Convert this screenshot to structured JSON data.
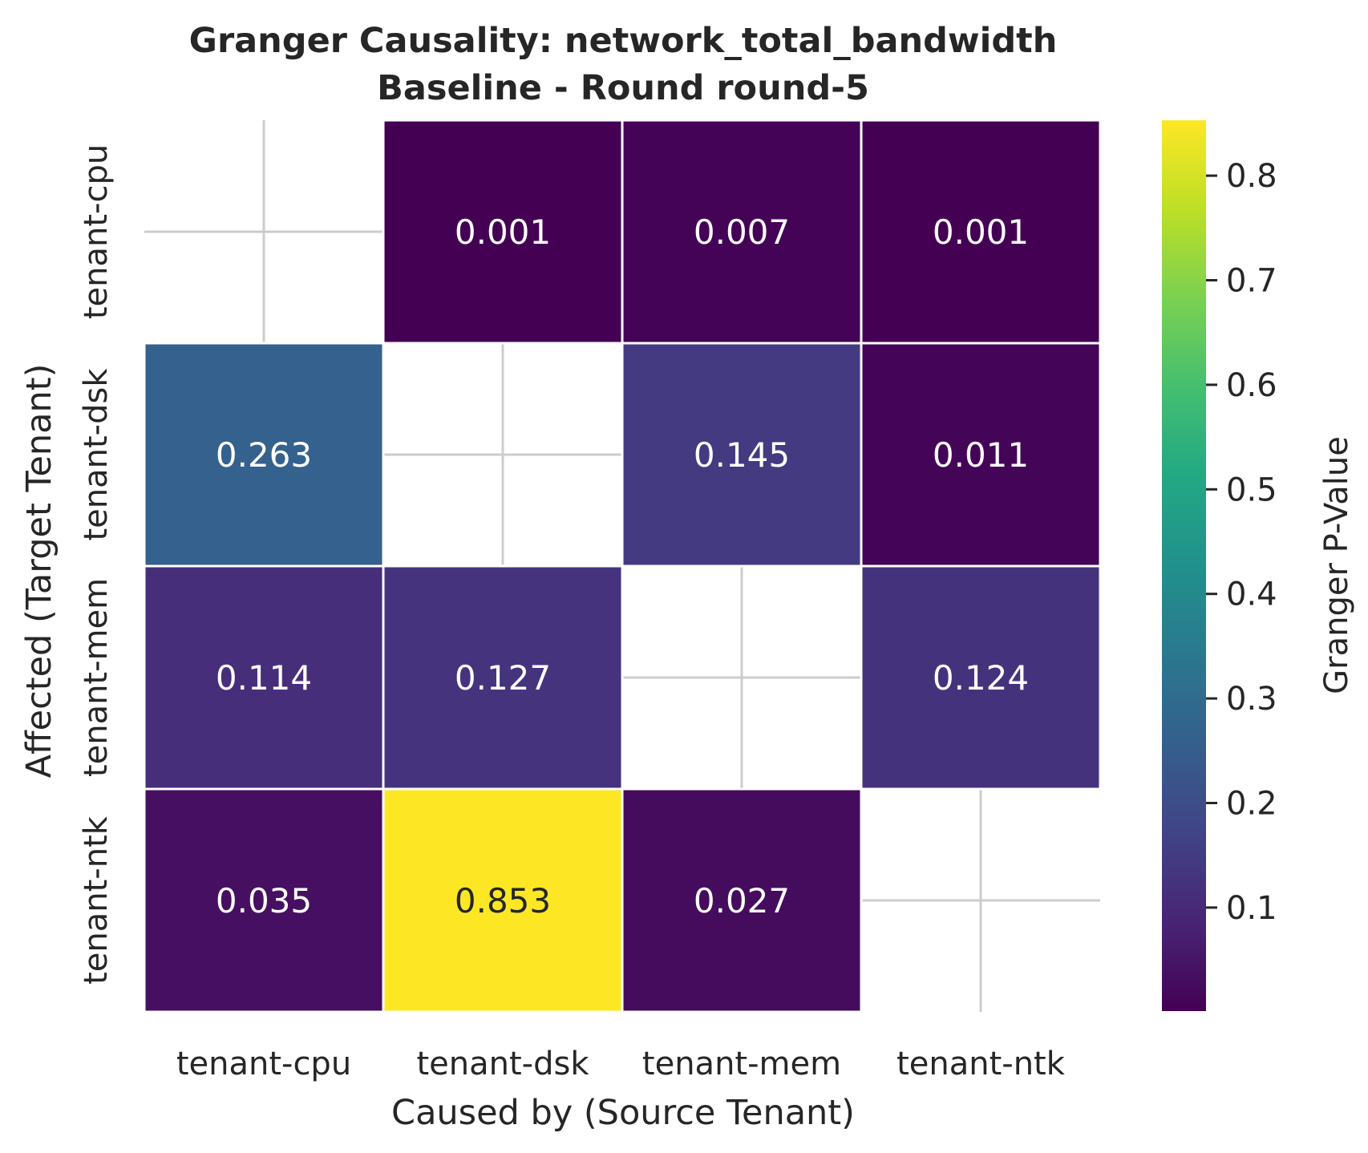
{
  "chart_data": {
    "type": "heatmap",
    "title": "Granger Causality: network_total_bandwidth",
    "subtitle": "Baseline - Round round-5",
    "xlabel": "Caused by (Source Tenant)",
    "ylabel": "Affected (Target Tenant)",
    "x_categories": [
      "tenant-cpu",
      "tenant-dsk",
      "tenant-mem",
      "tenant-ntk"
    ],
    "y_categories": [
      "tenant-cpu",
      "tenant-dsk",
      "tenant-mem",
      "tenant-ntk"
    ],
    "values": [
      [
        null,
        0.001,
        0.007,
        0.001
      ],
      [
        0.263,
        null,
        0.145,
        0.011
      ],
      [
        0.114,
        0.127,
        null,
        0.124
      ],
      [
        0.035,
        0.853,
        0.027,
        null
      ]
    ],
    "value_labels": [
      [
        "",
        "0.001",
        "0.007",
        "0.001"
      ],
      [
        "0.263",
        "",
        "0.145",
        "0.011"
      ],
      [
        "0.114",
        "0.127",
        "",
        "0.124"
      ],
      [
        "0.035",
        "0.853",
        "0.027",
        ""
      ]
    ],
    "colorscale": "viridis",
    "colorbar": {
      "label": "Granger P-Value",
      "range": [
        0.001,
        0.853
      ],
      "ticks": [
        0.1,
        0.2,
        0.3,
        0.4,
        0.5,
        0.6,
        0.7,
        0.8
      ],
      "tick_labels": [
        "0.1",
        "0.2",
        "0.3",
        "0.4",
        "0.5",
        "0.6",
        "0.7",
        "0.8"
      ]
    },
    "grid": true
  }
}
